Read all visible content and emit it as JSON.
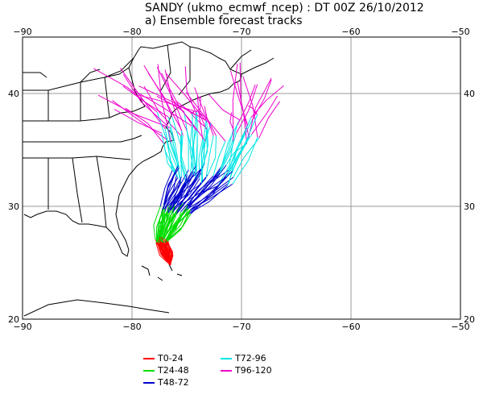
{
  "title": {
    "line1": "SANDY (ukmo_ecmwf_ncep) : DT 00Z 26/10/2012",
    "line2": "a) Ensemble forecast tracks"
  },
  "map": {
    "lon_range": [
      -90,
      -50
    ],
    "lat_range": [
      20,
      45
    ],
    "lon_ticks": [
      -90,
      -80,
      -70,
      -60,
      -50
    ],
    "lat_ticks": [
      20,
      30,
      40
    ],
    "tick_labels_lon": [
      "−90",
      "−80",
      "−70",
      "−60",
      "−50"
    ],
    "tick_labels_lat": [
      "20",
      "30",
      "40"
    ],
    "grid": true,
    "land_outline_color": "#000000"
  },
  "legend": {
    "items": [
      {
        "label": "T0-24",
        "color": "#ff0000"
      },
      {
        "label": "T24-48",
        "color": "#00dd00"
      },
      {
        "label": "T48-72",
        "color": "#0000cc"
      },
      {
        "label": "T72-96",
        "color": "#00e5e5"
      },
      {
        "label": "T96-120",
        "color": "#ee00cc"
      }
    ]
  }
}
